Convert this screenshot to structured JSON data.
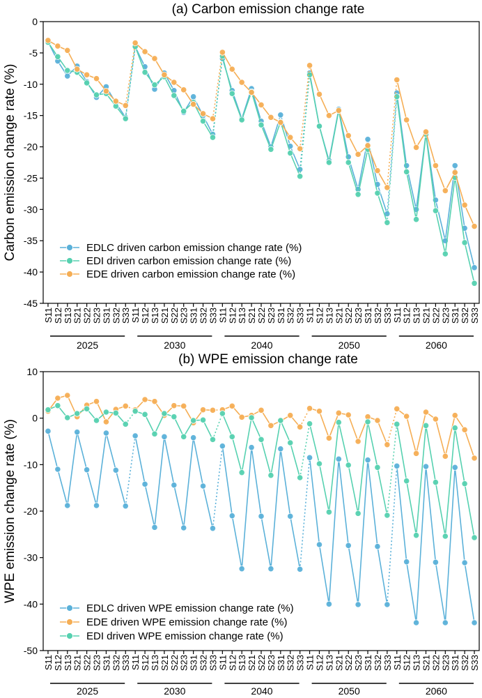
{
  "chart_data": [
    {
      "type": "line",
      "title": "(a) Carbon emission change rate",
      "ylabel": "Carbon emission change rate (%)",
      "ylim": [
        -45,
        0
      ],
      "yticks": [
        0,
        -5,
        -10,
        -15,
        -20,
        -25,
        -30,
        -35,
        -40,
        -45
      ],
      "legend_position": "bottom-left",
      "groups": [
        {
          "label": "2025",
          "scenarios": [
            "S11",
            "S12",
            "S13",
            "S21",
            "S22",
            "S23",
            "S31",
            "S32",
            "S33"
          ]
        },
        {
          "label": "2030",
          "scenarios": [
            "S11",
            "S12",
            "S13",
            "S21",
            "S22",
            "S23",
            "S31",
            "S32",
            "S33"
          ]
        },
        {
          "label": "2040",
          "scenarios": [
            "S11",
            "S12",
            "S13",
            "S21",
            "S22",
            "S23",
            "S31",
            "S32",
            "S33"
          ]
        },
        {
          "label": "2050",
          "scenarios": [
            "S11",
            "S12",
            "S13",
            "S21",
            "S22",
            "S23",
            "S31",
            "S32",
            "S33"
          ]
        },
        {
          "label": "2060",
          "scenarios": [
            "S11",
            "S12",
            "S13",
            "S21",
            "S22",
            "S23",
            "S31",
            "S32",
            "S33"
          ]
        }
      ],
      "series": [
        {
          "name": "EDLC driven carbon emission change rate (%)",
          "color": "#5BB1D9",
          "values": [
            -3.2,
            -6.3,
            -8.7,
            -7.1,
            -9.6,
            -12.1,
            -10.4,
            -13.0,
            -15.3,
            -4.0,
            -7.2,
            -10.8,
            -8.2,
            -11.0,
            -14.5,
            -12.0,
            -15.0,
            -18.0,
            -5.9,
            -11.0,
            -15.5,
            -10.7,
            -15.9,
            -20.0,
            -14.9,
            -19.9,
            -23.6,
            -8.2,
            -16.7,
            -22.2,
            -14.0,
            -21.6,
            -26.8,
            -18.8,
            -26.0,
            -30.7,
            -11.4,
            -23.0,
            -30.0,
            -17.9,
            -28.5,
            -35.0,
            -23.0,
            -33.0,
            -39.3
          ]
        },
        {
          "name": "EDI driven carbon emission change rate (%)",
          "color": "#56D1B0",
          "values": [
            -3.3,
            -5.6,
            -7.8,
            -8.1,
            -9.8,
            -11.7,
            -11.5,
            -13.5,
            -15.5,
            -4.0,
            -8.1,
            -10.1,
            -8.8,
            -11.8,
            -14.3,
            -12.9,
            -15.9,
            -18.5,
            -5.5,
            -11.5,
            -15.7,
            -11.2,
            -16.5,
            -20.4,
            -16.0,
            -21.0,
            -24.7,
            -8.5,
            -16.7,
            -22.5,
            -14.2,
            -22.5,
            -27.6,
            -20.4,
            -27.4,
            -32.1,
            -12.0,
            -24.0,
            -31.6,
            -18.0,
            -30.2,
            -37.1,
            -24.9,
            -35.3,
            -41.8
          ]
        },
        {
          "name": "EDE driven carbon emission change rate (%)",
          "color": "#F5AE55",
          "values": [
            -3.0,
            -3.9,
            -4.6,
            -7.6,
            -8.5,
            -9.1,
            -11.1,
            -12.7,
            -13.4,
            -3.4,
            -4.8,
            -5.9,
            -8.5,
            -9.7,
            -10.9,
            -13.2,
            -14.7,
            -15.5,
            -4.9,
            -7.6,
            -9.7,
            -11.3,
            -13.3,
            -15.3,
            -16.1,
            -18.5,
            -20.3,
            -7.0,
            -11.6,
            -15.0,
            -14.2,
            -18.2,
            -21.2,
            -19.8,
            -23.8,
            -26.5,
            -9.3,
            -15.7,
            -20.1,
            -17.6,
            -23.0,
            -27.0,
            -24.1,
            -29.3,
            -32.7
          ]
        }
      ]
    },
    {
      "type": "line",
      "title": "(b) WPE emission change rate",
      "ylabel": "WPE emission change rate (%)",
      "ylim": [
        -50,
        10
      ],
      "yticks": [
        10,
        0,
        -10,
        -20,
        -30,
        -40,
        -50
      ],
      "legend_position": "bottom-left",
      "groups": [
        {
          "label": "2025",
          "scenarios": [
            "S11",
            "S12",
            "S13",
            "S21",
            "S22",
            "S23",
            "S31",
            "S32",
            "S33"
          ]
        },
        {
          "label": "2030",
          "scenarios": [
            "S11",
            "S12",
            "S13",
            "S21",
            "S22",
            "S23",
            "S31",
            "S32",
            "S33"
          ]
        },
        {
          "label": "2040",
          "scenarios": [
            "S11",
            "S12",
            "S13",
            "S21",
            "S22",
            "S23",
            "S31",
            "S32",
            "S33"
          ]
        },
        {
          "label": "2050",
          "scenarios": [
            "S11",
            "S12",
            "S13",
            "S21",
            "S22",
            "S23",
            "S31",
            "S32",
            "S33"
          ]
        },
        {
          "label": "2060",
          "scenarios": [
            "S11",
            "S12",
            "S13",
            "S21",
            "S22",
            "S23",
            "S31",
            "S32",
            "S33"
          ]
        }
      ],
      "series": [
        {
          "name": "EDLC driven WPE emission change rate (%)",
          "color": "#5BB1D9",
          "values": [
            -2.8,
            -11.0,
            -18.8,
            -3.0,
            -11.1,
            -18.8,
            -3.2,
            -11.2,
            -18.9,
            -3.8,
            -14.2,
            -23.5,
            -4.0,
            -14.4,
            -23.6,
            -4.2,
            -14.6,
            -23.7,
            -6.0,
            -21.0,
            -32.4,
            -6.3,
            -21.1,
            -32.4,
            -6.6,
            -21.1,
            -32.5,
            -8.5,
            -27.2,
            -40.0,
            -8.8,
            -27.4,
            -40.1,
            -9.0,
            -27.6,
            -40.1,
            -10.3,
            -30.9,
            -44.0,
            -10.4,
            -31.0,
            -44.0,
            -10.6,
            -31.1,
            -44.0
          ]
        },
        {
          "name": "EDE driven WPE emission change rate (%)",
          "color": "#F5AE55",
          "values": [
            1.5,
            4.3,
            4.9,
            0.3,
            2.8,
            3.6,
            -0.8,
            1.9,
            2.6,
            1.8,
            4.0,
            3.6,
            0.6,
            2.7,
            2.6,
            -1.0,
            1.8,
            1.7,
            1.8,
            2.6,
            0.2,
            0.6,
            1.7,
            -1.6,
            -0.6,
            0.6,
            -1.9,
            2.1,
            1.5,
            -4.3,
            1.1,
            0.7,
            -5.0,
            0.3,
            -0.5,
            -5.7,
            2.0,
            0.4,
            -7.6,
            1.3,
            -0.2,
            -8.2,
            0.6,
            -2.5,
            -8.6
          ]
        },
        {
          "name": "EDI driven WPE emission change rate (%)",
          "color": "#56D1B0",
          "values": [
            1.8,
            2.7,
            0.1,
            1.0,
            2.0,
            -0.5,
            1.3,
            1.1,
            -1.3,
            1.5,
            0.8,
            -3.4,
            1.0,
            0.3,
            -4.0,
            -0.5,
            -0.4,
            -4.6,
            1.0,
            -4.0,
            -11.7,
            0.1,
            -4.6,
            -12.3,
            -0.5,
            -5.3,
            -12.8,
            -1.2,
            -9.8,
            -20.2,
            -0.9,
            -10.1,
            -20.5,
            -0.8,
            -10.6,
            -20.9,
            -1.3,
            -13.5,
            -25.2,
            -1.6,
            -13.8,
            -25.4,
            -2.1,
            -14.1,
            -25.7
          ]
        }
      ]
    }
  ]
}
